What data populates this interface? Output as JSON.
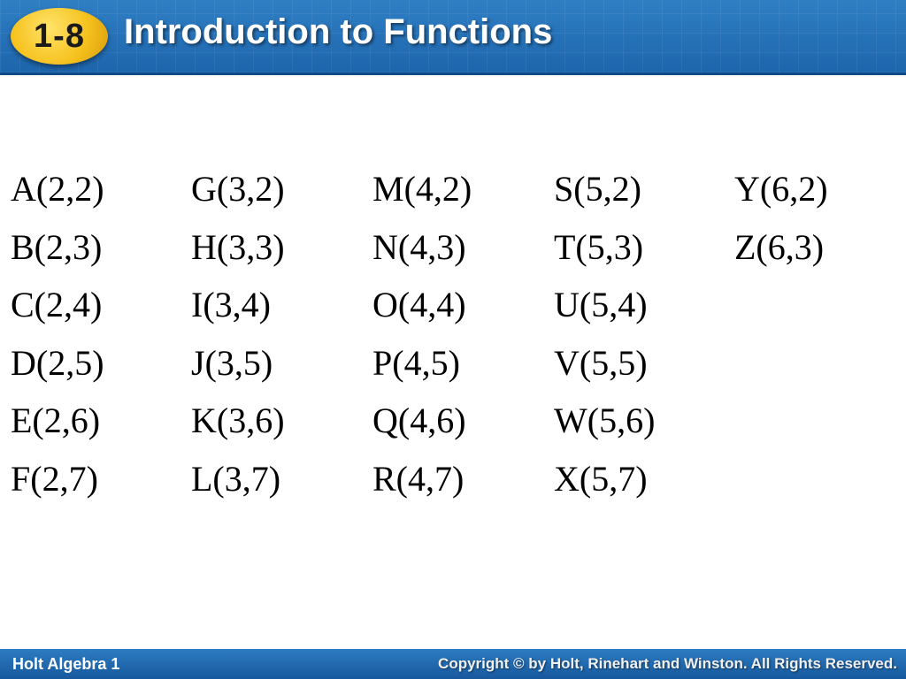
{
  "header": {
    "lesson_number": "1-8",
    "title": "Introduction to Functions"
  },
  "points": {
    "col0": [
      "A(2,2)",
      "B(2,3)",
      "C(2,4)",
      "D(2,5)",
      "E(2,6)",
      "F(2,7)"
    ],
    "col1": [
      "G(3,2)",
      "H(3,3)",
      "I(3,4)",
      "J(3,5)",
      "K(3,6)",
      "L(3,7)"
    ],
    "col2": [
      "M(4,2)",
      "N(4,3)",
      "O(4,4)",
      "P(4,5)",
      "Q(4,6)",
      "R(4,7)"
    ],
    "col3": [
      "S(5,2)",
      "T(5,3)",
      "U(5,4)",
      "V(5,5)",
      "W(5,6)",
      "X(5,7)"
    ],
    "col4": [
      "Y(6,2)",
      "Z(6,3)"
    ]
  },
  "footer": {
    "left": "Holt Algebra 1",
    "right": "Copyright © by Holt, Rinehart and Winston. All Rights Reserved."
  },
  "colors": {
    "header_blue": "#1d65ad",
    "badge_gold": "#f6c21e",
    "text": "#000000"
  }
}
